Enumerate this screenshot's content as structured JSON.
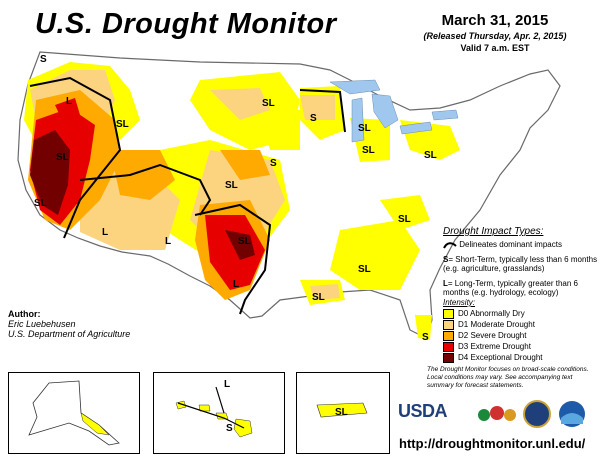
{
  "header": {
    "title": "U.S. Drought Monitor",
    "date": "March 31, 2015",
    "released": "(Released Thursday, Apr. 2, 2015)",
    "valid": "Valid 7 a.m. EST"
  },
  "legend": {
    "impact_title": "Drought Impact Types:",
    "line_desc": "Delineates dominant impacts",
    "s_key": "S",
    "s_desc": "= Short-Term, typically less than 6 months (e.g. agriculture, grasslands)",
    "l_key": "L",
    "l_desc": "= Long-Term, typically greater than 6 months (e.g. hydrology, ecology)",
    "intensity_title": "Intensity:",
    "levels": [
      {
        "label": "D0 Abnormally Dry",
        "color": "#ffff00"
      },
      {
        "label": "D1 Moderate Drought",
        "color": "#fcd37f"
      },
      {
        "label": "D2 Severe Drought",
        "color": "#ffaa00"
      },
      {
        "label": "D3 Extreme Drought",
        "color": "#e60000"
      },
      {
        "label": "D4 Exceptional Drought",
        "color": "#730000"
      }
    ]
  },
  "footnote": "The Drought Monitor focuses on broad-scale conditions. Local conditions may vary. See accompanying text summary for forecast statements.",
  "author": {
    "title": "Author:",
    "name": "Eric Luebehusen",
    "org": "U.S. Department of Agriculture"
  },
  "map_labels": {
    "s": "S",
    "l": "L",
    "sl": "SL"
  },
  "logos": {
    "usda": "USDA"
  },
  "url": "http://droughtmonitor.unl.edu/"
}
